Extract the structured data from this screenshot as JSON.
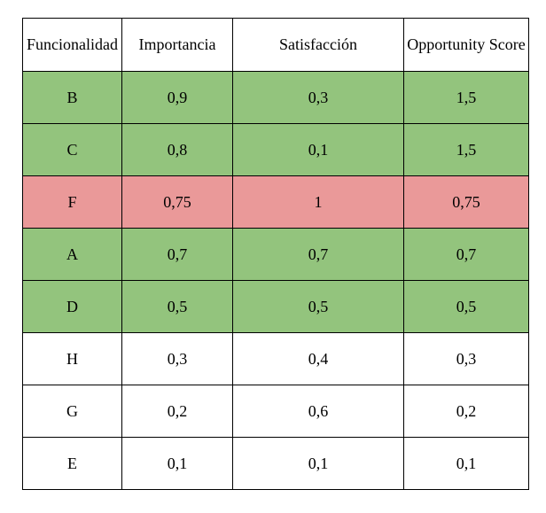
{
  "table": {
    "headers": [
      "Funcionalidad",
      "Importancia",
      "Satisfacción",
      "Opportunity Score"
    ],
    "rows": [
      {
        "cells": [
          "B",
          "0,9",
          "0,3",
          "1,5"
        ],
        "highlight": "green"
      },
      {
        "cells": [
          "C",
          "0,8",
          "0,1",
          "1,5"
        ],
        "highlight": "green"
      },
      {
        "cells": [
          "F",
          "0,75",
          "1",
          "0,75"
        ],
        "highlight": "red"
      },
      {
        "cells": [
          "A",
          "0,7",
          "0,7",
          "0,7"
        ],
        "highlight": "green"
      },
      {
        "cells": [
          "D",
          "0,5",
          "0,5",
          "0,5"
        ],
        "highlight": "green"
      },
      {
        "cells": [
          "H",
          "0,3",
          "0,4",
          "0,3"
        ],
        "highlight": "none"
      },
      {
        "cells": [
          "G",
          "0,2",
          "0,6",
          "0,2"
        ],
        "highlight": "none"
      },
      {
        "cells": [
          "E",
          "0,1",
          "0,1",
          "0,1"
        ],
        "highlight": "none"
      }
    ]
  },
  "chart_data": {
    "type": "table",
    "columns": [
      "Funcionalidad",
      "Importancia",
      "Satisfacción",
      "Opportunity Score"
    ],
    "rows": [
      [
        "B",
        0.9,
        0.3,
        1.5
      ],
      [
        "C",
        0.8,
        0.1,
        1.5
      ],
      [
        "F",
        0.75,
        1,
        0.75
      ],
      [
        "A",
        0.7,
        0.7,
        0.7
      ],
      [
        "D",
        0.5,
        0.5,
        0.5
      ],
      [
        "H",
        0.3,
        0.4,
        0.3
      ],
      [
        "G",
        0.2,
        0.6,
        0.2
      ],
      [
        "E",
        0.1,
        0.1,
        0.1
      ]
    ],
    "row_highlights": [
      "green",
      "green",
      "red",
      "green",
      "green",
      "none",
      "none",
      "none"
    ],
    "number_format": "decimal-comma"
  },
  "colors": {
    "green_highlight": "#93c47d",
    "red_highlight": "#ea9999",
    "border": "#000000",
    "header_background": "#ffffff",
    "page_background": "#ffffff"
  }
}
